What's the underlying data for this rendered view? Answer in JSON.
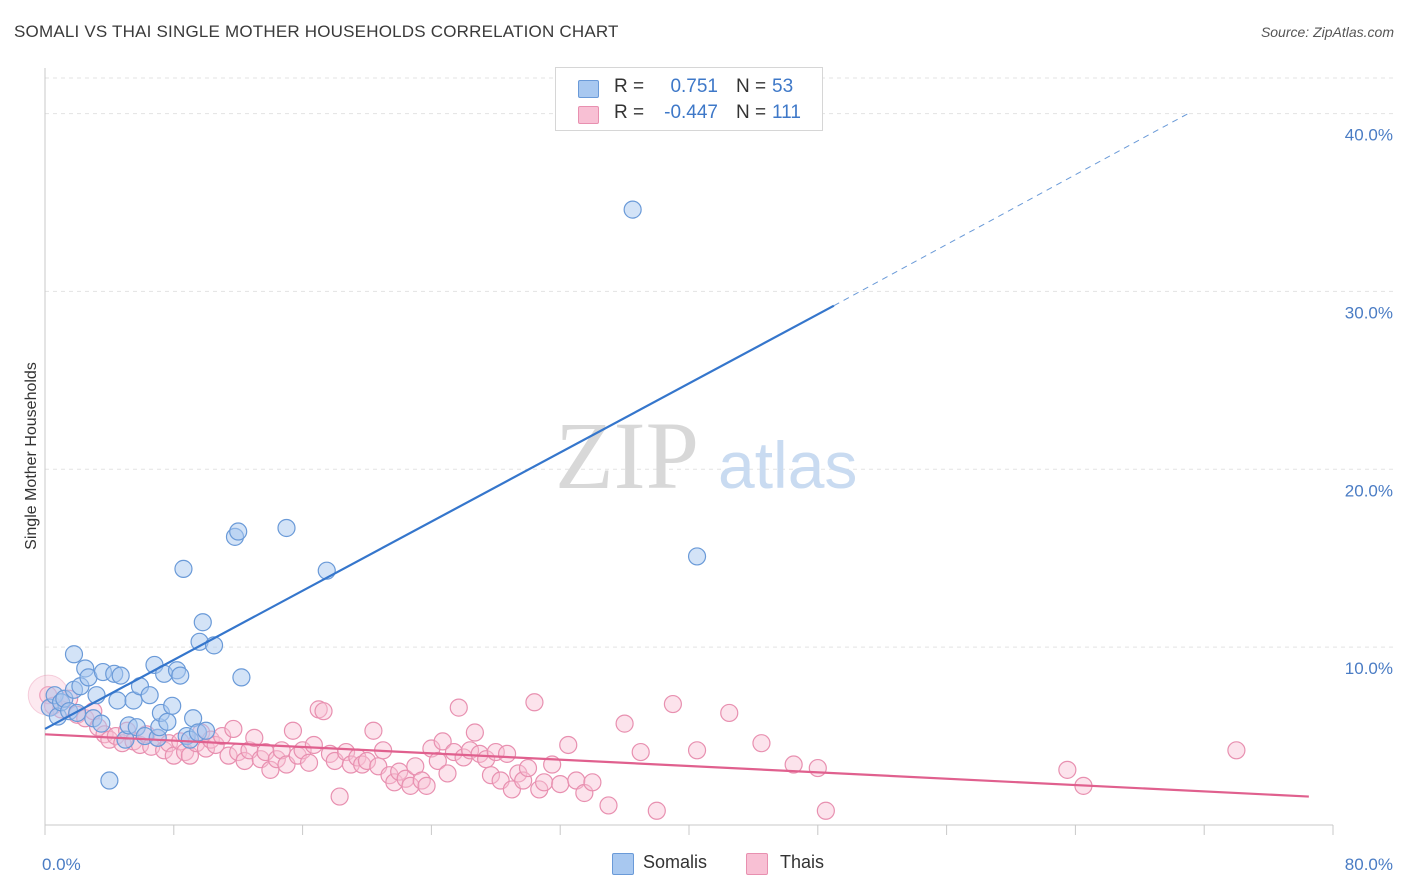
{
  "header": {
    "title": "SOMALI VS THAI SINGLE MOTHER HOUSEHOLDS CORRELATION CHART",
    "source": "Source: ZipAtlas.com"
  },
  "watermark": {
    "zip": "ZIP",
    "atlas": "atlas"
  },
  "legend": {
    "rows": [
      {
        "r_label": "R =",
        "r_value": "0.751",
        "n_label": "N =",
        "n_value": "53",
        "color": "#a8c8f0",
        "border": "#6a9ad8"
      },
      {
        "r_label": "R =",
        "r_value": "-0.447",
        "n_label": "N =",
        "n_value": "111",
        "color": "#f8c0d4",
        "border": "#e890b0"
      }
    ]
  },
  "bottom_legend": [
    {
      "label": "Somalis",
      "color": "#a8c8f0",
      "border": "#6a9ad8"
    },
    {
      "label": "Thais",
      "color": "#f8c0d4",
      "border": "#e890b0"
    }
  ],
  "chart_data": {
    "type": "scatter",
    "title": "SOMALI VS THAI SINGLE MOTHER HOUSEHOLDS CORRELATION CHART",
    "xlabel": "",
    "ylabel": "Single Mother Households",
    "xlim": [
      0,
      80
    ],
    "ylim": [
      0,
      42
    ],
    "x_tick_labels": [
      "0.0%",
      "80.0%"
    ],
    "y_ticks": [
      10,
      20,
      30,
      40
    ],
    "y_tick_labels": [
      "10.0%",
      "20.0%",
      "30.0%",
      "40.0%"
    ],
    "grid": true,
    "legend_position": "top-center",
    "series": [
      {
        "name": "Somalis",
        "color": "#6a9ad8",
        "fill": "#a8c8f0",
        "r": 0.751,
        "n": 53,
        "trend": {
          "x0": 0,
          "y0": 5.4,
          "x1": 49,
          "y1": 29.2,
          "dash_to_x": 71,
          "dash_to_y": 40.0
        },
        "points": [
          [
            0.3,
            6.6
          ],
          [
            0.6,
            7.3
          ],
          [
            0.8,
            6.1
          ],
          [
            1.0,
            6.9
          ],
          [
            1.2,
            7.1
          ],
          [
            1.5,
            6.4
          ],
          [
            1.8,
            7.6
          ],
          [
            2.0,
            6.3
          ],
          [
            2.2,
            7.8
          ],
          [
            1.8,
            9.6
          ],
          [
            2.5,
            8.8
          ],
          [
            2.7,
            8.3
          ],
          [
            3.0,
            6.0
          ],
          [
            3.2,
            7.3
          ],
          [
            3.5,
            5.7
          ],
          [
            3.6,
            8.6
          ],
          [
            4.0,
            2.5
          ],
          [
            4.3,
            8.5
          ],
          [
            4.5,
            7.0
          ],
          [
            4.7,
            8.4
          ],
          [
            5.0,
            4.8
          ],
          [
            5.2,
            5.6
          ],
          [
            5.5,
            7.0
          ],
          [
            5.7,
            5.5
          ],
          [
            5.9,
            7.8
          ],
          [
            6.2,
            5.0
          ],
          [
            6.5,
            7.3
          ],
          [
            6.8,
            9.0
          ],
          [
            7.0,
            4.9
          ],
          [
            7.1,
            5.5
          ],
          [
            7.2,
            6.3
          ],
          [
            7.4,
            8.5
          ],
          [
            7.6,
            5.8
          ],
          [
            7.9,
            6.7
          ],
          [
            8.2,
            8.7
          ],
          [
            8.4,
            8.4
          ],
          [
            8.6,
            14.4
          ],
          [
            8.8,
            5.0
          ],
          [
            9.0,
            4.8
          ],
          [
            9.2,
            6.0
          ],
          [
            9.5,
            5.2
          ],
          [
            9.6,
            10.3
          ],
          [
            9.8,
            11.4
          ],
          [
            10.0,
            5.3
          ],
          [
            10.5,
            10.1
          ],
          [
            11.8,
            16.2
          ],
          [
            12.0,
            16.5
          ],
          [
            12.2,
            8.3
          ],
          [
            15.0,
            16.7
          ],
          [
            17.5,
            14.3
          ],
          [
            36.5,
            34.6
          ],
          [
            40.5,
            15.1
          ]
        ]
      },
      {
        "name": "Thais",
        "color": "#e890b0",
        "fill": "#f8c0d4",
        "r": -0.447,
        "n": 111,
        "trend": {
          "x0": 0,
          "y0": 5.1,
          "x1": 78.5,
          "y1": 1.6
        },
        "points": [
          [
            0.2,
            7.3
          ],
          [
            0.5,
            6.7
          ],
          [
            1.0,
            6.5
          ],
          [
            1.5,
            7.1
          ],
          [
            2.0,
            6.2
          ],
          [
            2.5,
            6.0
          ],
          [
            3.0,
            6.4
          ],
          [
            3.3,
            5.5
          ],
          [
            3.7,
            5.1
          ],
          [
            4.0,
            4.8
          ],
          [
            4.4,
            5.0
          ],
          [
            4.8,
            4.6
          ],
          [
            5.1,
            5.3
          ],
          [
            5.5,
            4.7
          ],
          [
            5.9,
            4.5
          ],
          [
            6.3,
            5.1
          ],
          [
            6.6,
            4.4
          ],
          [
            7.0,
            4.9
          ],
          [
            7.4,
            4.2
          ],
          [
            7.7,
            4.6
          ],
          [
            8.0,
            3.9
          ],
          [
            8.4,
            4.7
          ],
          [
            8.7,
            4.1
          ],
          [
            9.0,
            3.9
          ],
          [
            9.4,
            4.6
          ],
          [
            9.7,
            5.2
          ],
          [
            10.0,
            4.3
          ],
          [
            10.3,
            4.8
          ],
          [
            10.6,
            4.5
          ],
          [
            11.0,
            5.0
          ],
          [
            11.4,
            3.9
          ],
          [
            11.7,
            5.4
          ],
          [
            12.0,
            4.1
          ],
          [
            12.4,
            3.6
          ],
          [
            12.7,
            4.2
          ],
          [
            13.0,
            4.9
          ],
          [
            13.4,
            3.7
          ],
          [
            13.7,
            4.1
          ],
          [
            14.0,
            3.1
          ],
          [
            14.4,
            3.7
          ],
          [
            14.7,
            4.2
          ],
          [
            15.0,
            3.4
          ],
          [
            15.4,
            5.3
          ],
          [
            15.7,
            3.9
          ],
          [
            16.0,
            4.2
          ],
          [
            16.4,
            3.5
          ],
          [
            16.7,
            4.5
          ],
          [
            17.0,
            6.5
          ],
          [
            17.3,
            6.4
          ],
          [
            17.7,
            4.0
          ],
          [
            18.0,
            3.6
          ],
          [
            18.3,
            1.6
          ],
          [
            18.7,
            4.1
          ],
          [
            19.0,
            3.4
          ],
          [
            19.4,
            3.8
          ],
          [
            19.7,
            3.4
          ],
          [
            20.0,
            3.6
          ],
          [
            20.4,
            5.3
          ],
          [
            20.7,
            3.3
          ],
          [
            21.0,
            4.2
          ],
          [
            21.4,
            2.8
          ],
          [
            21.7,
            2.4
          ],
          [
            22.0,
            3.0
          ],
          [
            22.4,
            2.6
          ],
          [
            22.7,
            2.2
          ],
          [
            23.0,
            3.3
          ],
          [
            23.4,
            2.5
          ],
          [
            23.7,
            2.2
          ],
          [
            24.0,
            4.3
          ],
          [
            24.4,
            3.6
          ],
          [
            24.7,
            4.7
          ],
          [
            25.0,
            2.9
          ],
          [
            25.4,
            4.1
          ],
          [
            25.7,
            6.6
          ],
          [
            26.0,
            3.8
          ],
          [
            26.4,
            4.2
          ],
          [
            26.7,
            5.2
          ],
          [
            27.0,
            4.0
          ],
          [
            27.4,
            3.7
          ],
          [
            27.7,
            2.8
          ],
          [
            28.0,
            4.1
          ],
          [
            28.3,
            2.5
          ],
          [
            28.7,
            4.0
          ],
          [
            29.0,
            2.0
          ],
          [
            29.4,
            2.9
          ],
          [
            29.7,
            2.5
          ],
          [
            30.0,
            3.2
          ],
          [
            30.4,
            6.9
          ],
          [
            30.7,
            2.0
          ],
          [
            31.0,
            2.4
          ],
          [
            31.5,
            3.4
          ],
          [
            32.0,
            2.3
          ],
          [
            32.5,
            4.5
          ],
          [
            33.0,
            2.5
          ],
          [
            33.5,
            1.8
          ],
          [
            34.0,
            2.4
          ],
          [
            35.0,
            1.1
          ],
          [
            36.0,
            5.7
          ],
          [
            37.0,
            4.1
          ],
          [
            38.0,
            0.8
          ],
          [
            39.0,
            6.8
          ],
          [
            40.5,
            4.2
          ],
          [
            42.5,
            6.3
          ],
          [
            44.5,
            4.6
          ],
          [
            46.5,
            3.4
          ],
          [
            48.0,
            3.2
          ],
          [
            48.5,
            0.8
          ],
          [
            63.5,
            3.1
          ],
          [
            64.5,
            2.2
          ],
          [
            74.0,
            4.2
          ]
        ]
      }
    ]
  }
}
